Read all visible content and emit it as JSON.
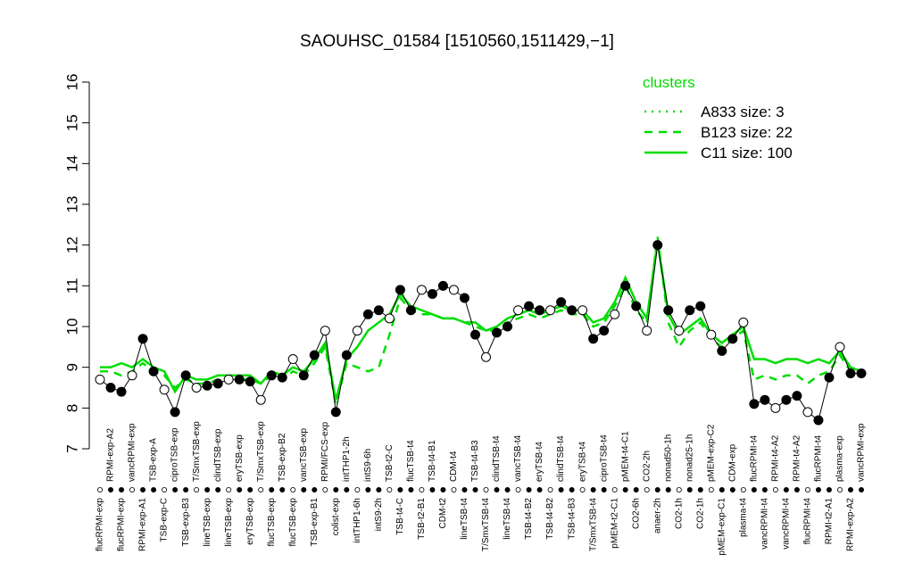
{
  "chart_data": {
    "type": "line",
    "title": "SAOUHSC_01584 [1510560,1511429,−1]",
    "legend_title": "clusters",
    "line_color": "#000000",
    "ylim": [
      7,
      16
    ],
    "yticks": [
      7,
      8,
      9,
      10,
      11,
      12,
      13,
      14,
      15,
      16
    ],
    "categories": [
      "flucRPMI-exp",
      "RPMI-exp-A2",
      "flucRPMI-exp",
      "vancRPMI-exp",
      "RPMI-exp-A1",
      "TSB-exp-A",
      "TSB-exp-C",
      "ciproTSB-exp",
      "TSB-exp-B3",
      "T/SmxTSB-exp",
      "lineTSB-exp",
      "clindTSB-exp",
      "lineTSB-exp",
      "eryTSB-exp",
      "eryTSB-exp",
      "T/SmxTSB-exp",
      "flucTSB-exp",
      "TSB-exp-B2",
      "flucTSB-exp",
      "vancTSB-exp",
      "TSB-exp-B1",
      "RPMI/FCS-exp",
      "colist-exp",
      "intTHP1-2h",
      "intTHP1-6h",
      "intS9-6h",
      "intS9-2h",
      "TSB-t2-C",
      "TSB-t4-C",
      "flucTSB-t4",
      "TSB-t2-B1",
      "TSB-t4-B1",
      "CDM-t2",
      "CDM-t4",
      "lineTSB-t4",
      "TSB-t4-B3",
      "T/SmxTSB-t4",
      "clindTSB-t4",
      "lineTSB-t4",
      "vancTSB-t4",
      "TSB-t4-B2",
      "eryTSB-t4",
      "TSB-t4-B2",
      "clindTSB-t4",
      "TSB-t4-B3",
      "eryTSB-t4",
      "T/SmxTSB-t4",
      "ciproTSB-t4",
      "pMEM-t2-C1",
      "pMEM-t4-C1",
      "CO2-6h",
      "CO2-2h",
      "anaer-2h",
      "nonad50-1h",
      "CO2-1h",
      "nonad25-1h",
      "CO2-1h",
      "pMEM-exp-C2",
      "pMEM-exp-C1",
      "CDM-exp",
      "plasma-t4",
      "flucRPMI-t4",
      "vancRPMI-t4",
      "RPMI-t4-A2",
      "vancRPMI-t4",
      "RPMI-t4-A2",
      "flucRPMI-t4",
      "flucRPMI-t4",
      "RPMI-t2-A1",
      "plasma-exp",
      "RPMI-exp-A2",
      "vancRPMI-exp"
    ],
    "values": [
      8.7,
      8.5,
      8.4,
      8.8,
      9.7,
      8.9,
      8.45,
      7.9,
      8.8,
      8.5,
      8.55,
      8.6,
      8.7,
      8.7,
      8.65,
      8.2,
      8.8,
      8.75,
      9.2,
      8.8,
      9.3,
      9.9,
      7.9,
      9.3,
      9.9,
      10.3,
      10.4,
      10.2,
      10.9,
      10.4,
      10.9,
      10.8,
      11.0,
      10.9,
      10.7,
      9.8,
      9.25,
      9.85,
      10.0,
      10.4,
      10.5,
      10.4,
      10.4,
      10.6,
      10.4,
      10.4,
      9.7,
      9.9,
      10.3,
      11.0,
      10.5,
      9.9,
      12.0,
      10.4,
      9.9,
      10.4,
      10.5,
      9.8,
      9.4,
      9.7,
      10.1,
      8.1,
      8.2,
      8.0,
      8.2,
      8.3,
      7.9,
      7.7,
      8.75,
      9.5,
      8.85,
      8.85
    ],
    "series": [
      {
        "name": "A833 size: 3",
        "color": "#00dd00",
        "dash": "dotted",
        "values": [
          null,
          null,
          null,
          null,
          null,
          null,
          null,
          null,
          null,
          null,
          null,
          null,
          null,
          null,
          null,
          null,
          null,
          null,
          null,
          null,
          null,
          null,
          null,
          null,
          null,
          null,
          null,
          null,
          null,
          null,
          null,
          null,
          null,
          null,
          null,
          null,
          null,
          null,
          null,
          null,
          null,
          null,
          null,
          null,
          null,
          null,
          null,
          null,
          null,
          null,
          null,
          10.1,
          12.2,
          10.2,
          null,
          null,
          null,
          null,
          null,
          null,
          null,
          null,
          null,
          null,
          null,
          null,
          null,
          null,
          null,
          null,
          null,
          null
        ]
      },
      {
        "name": "B123 size: 22",
        "color": "#00dd00",
        "dash": "dashed",
        "values": [
          8.9,
          8.9,
          8.8,
          8.9,
          9.1,
          8.9,
          8.8,
          8.5,
          8.7,
          8.6,
          8.6,
          8.7,
          8.7,
          8.7,
          8.7,
          8.6,
          8.8,
          8.7,
          8.9,
          8.8,
          9.1,
          9.5,
          8.1,
          9.1,
          9.0,
          8.9,
          9.0,
          9.8,
          10.7,
          10.4,
          10.3,
          10.3,
          10.2,
          10.2,
          10.1,
          10.0,
          9.9,
          9.9,
          10.1,
          10.2,
          10.3,
          10.2,
          10.3,
          10.4,
          10.3,
          10.3,
          10.0,
          10.1,
          10.5,
          11.0,
          10.4,
          10.1,
          12.2,
          10.1,
          9.5,
          9.9,
          10.1,
          9.7,
          9.5,
          9.7,
          9.9,
          8.7,
          8.8,
          8.7,
          8.8,
          8.8,
          8.6,
          8.8,
          8.9,
          9.3,
          8.9,
          8.8
        ]
      },
      {
        "name": "C11 size: 100",
        "color": "#00dd00",
        "dash": "solid",
        "values": [
          9.0,
          9.0,
          9.1,
          9.0,
          9.2,
          9.0,
          8.9,
          8.4,
          8.8,
          8.7,
          8.7,
          8.8,
          8.8,
          8.8,
          8.8,
          8.6,
          8.9,
          8.8,
          9.0,
          8.9,
          9.2,
          9.6,
          8.2,
          9.2,
          9.5,
          9.9,
          10.1,
          10.3,
          10.8,
          10.5,
          10.4,
          10.3,
          10.2,
          10.2,
          10.1,
          10.1,
          9.9,
          10.0,
          10.2,
          10.3,
          10.4,
          10.3,
          10.4,
          10.5,
          10.4,
          10.4,
          10.1,
          10.2,
          10.6,
          11.2,
          10.6,
          10.2,
          12.1,
          10.3,
          9.8,
          10.0,
          10.2,
          9.8,
          9.6,
          9.8,
          10.0,
          9.2,
          9.2,
          9.1,
          9.2,
          9.2,
          9.1,
          9.2,
          9.1,
          9.4,
          9.0,
          8.9
        ]
      }
    ]
  }
}
